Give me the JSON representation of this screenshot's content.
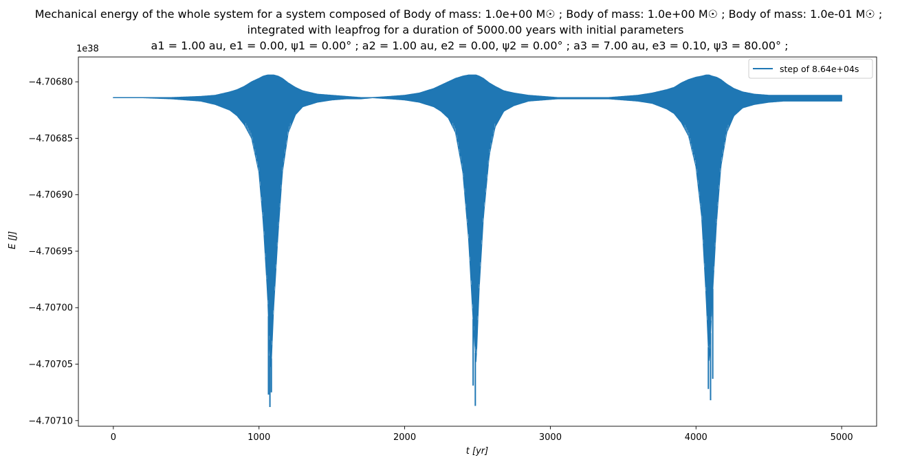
{
  "chart_data": {
    "type": "line",
    "title_lines": [
      "Mechanical energy of the whole system for a system composed of Body of mass: 1.0e+00 M☉ ; Body of mass: 1.0e+00 M☉ ; Body of mass: 1.0e-01 M☉ ;",
      "integrated with leapfrog for a duration of 5000.00 years with initial parameters",
      "a1 = 1.00 au, e1 = 0.00, ψ1 = 0.00° ; a2 = 1.00 au, e2 = 0.00, ψ2 = 0.00° ; a3 = 7.00 au, e3 = 0.10, ψ3 = 80.00° ;"
    ],
    "xlabel": "t [yr]",
    "ylabel": "E [J]",
    "y_offset_label": "1e38",
    "xlim": [
      -240,
      5240
    ],
    "ylim": [
      -4.707105,
      -4.706778
    ],
    "x_ticks": [
      0,
      1000,
      2000,
      3000,
      4000,
      5000
    ],
    "x_tick_labels": [
      "0",
      "1000",
      "2000",
      "3000",
      "4000",
      "5000"
    ],
    "y_ticks": [
      -4.7068,
      -4.70685,
      -4.7069,
      -4.70695,
      -4.707,
      -4.70705,
      -4.7071
    ],
    "y_tick_labels": [
      "−4.70680",
      "−4.70685",
      "−4.70690",
      "−4.70695",
      "−4.70700",
      "−4.70705",
      "−4.70710"
    ],
    "legend_position": "upper right",
    "series": [
      {
        "name": "step of 8.64e+04s",
        "color": "#1f77b4",
        "envelope": {
          "x": [
            0,
            200,
            400,
            600,
            700,
            800,
            850,
            900,
            950,
            1000,
            1030,
            1060,
            1080,
            1100,
            1130,
            1160,
            1200,
            1250,
            1300,
            1400,
            1500,
            1600,
            1700,
            1780,
            1900,
            2000,
            2100,
            2200,
            2250,
            2300,
            2350,
            2400,
            2440,
            2470,
            2490,
            2510,
            2540,
            2580,
            2620,
            2680,
            2750,
            2850,
            2950,
            3050,
            3150,
            3250,
            3330,
            3400,
            3500,
            3600,
            3700,
            3800,
            3850,
            3900,
            3950,
            4000,
            4040,
            4070,
            4090,
            4110,
            4140,
            4170,
            4210,
            4260,
            4320,
            4400,
            4500,
            4600,
            4700,
            4800,
            4900,
            5000
          ],
          "upper": [
            -4.706814,
            -4.706814,
            -4.706814,
            -4.706813,
            -4.706812,
            -4.706809,
            -4.706807,
            -4.706804,
            -4.7068,
            -4.706797,
            -4.706795,
            -4.706794,
            -4.706794,
            -4.706794,
            -4.706795,
            -4.706797,
            -4.706801,
            -4.706805,
            -4.706808,
            -4.706811,
            -4.706812,
            -4.706813,
            -4.706814,
            -4.706814,
            -4.706813,
            -4.706812,
            -4.70681,
            -4.706806,
            -4.706803,
            -4.7068,
            -4.706797,
            -4.706795,
            -4.706794,
            -4.706794,
            -4.706794,
            -4.706795,
            -4.706797,
            -4.706801,
            -4.706804,
            -4.706808,
            -4.70681,
            -4.706812,
            -4.706813,
            -4.706814,
            -4.706814,
            -4.706814,
            -4.706814,
            -4.706814,
            -4.706813,
            -4.706812,
            -4.70681,
            -4.706807,
            -4.706805,
            -4.706801,
            -4.706798,
            -4.706796,
            -4.706795,
            -4.706794,
            -4.706794,
            -4.706795,
            -4.706796,
            -4.706798,
            -4.706802,
            -4.706806,
            -4.706809,
            -4.706811,
            -4.706812,
            -4.706812,
            -4.706812,
            -4.706812,
            -4.706812,
            -4.706812
          ],
          "lower": [
            -4.706814,
            -4.706814,
            -4.706815,
            -4.706817,
            -4.70682,
            -4.706825,
            -4.70683,
            -4.706838,
            -4.70685,
            -4.70688,
            -4.706925,
            -4.70699,
            -4.70706,
            -4.707,
            -4.706935,
            -4.70688,
            -4.706845,
            -4.706829,
            -4.706822,
            -4.706818,
            -4.706816,
            -4.706815,
            -4.706815,
            -4.706814,
            -4.706815,
            -4.706816,
            -4.706818,
            -4.706822,
            -4.706826,
            -4.706832,
            -4.706845,
            -4.70688,
            -4.70694,
            -4.70701,
            -4.70705,
            -4.706985,
            -4.70692,
            -4.706865,
            -4.70684,
            -4.706826,
            -4.706821,
            -4.706817,
            -4.706816,
            -4.706815,
            -4.706815,
            -4.706815,
            -4.706815,
            -4.706815,
            -4.706816,
            -4.706817,
            -4.706819,
            -4.706824,
            -4.706828,
            -4.706836,
            -4.706848,
            -4.706875,
            -4.70692,
            -4.70699,
            -4.70705,
            -4.706995,
            -4.706925,
            -4.706875,
            -4.706845,
            -4.70683,
            -4.706823,
            -4.70682,
            -4.706818,
            -4.706817,
            -4.706817,
            -4.706817,
            -4.706817,
            -4.706817
          ]
        },
        "spikes": [
          {
            "x": 1065,
            "min": -4.707077
          },
          {
            "x": 1075,
            "min": -4.707088
          },
          {
            "x": 1085,
            "min": -4.707075
          },
          {
            "x": 2470,
            "min": -4.707069
          },
          {
            "x": 2485,
            "min": -4.707087
          },
          {
            "x": 4085,
            "min": -4.707072
          },
          {
            "x": 4100,
            "min": -4.707082
          },
          {
            "x": 4115,
            "min": -4.707063
          }
        ]
      }
    ]
  }
}
